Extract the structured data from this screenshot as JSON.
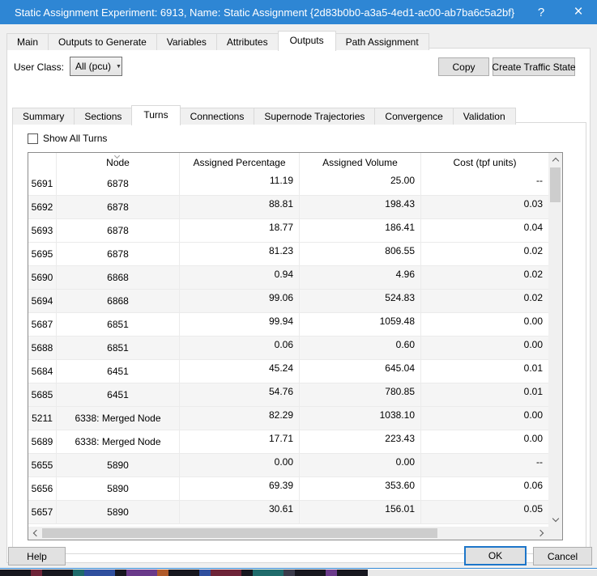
{
  "titlebar": {
    "title": "Static Assignment Experiment: 6913, Name: Static Assignment  {2d83b0b0-a3a5-4ed1-ac00-ab7ba6c5a2bf}",
    "help_glyph": "?",
    "close_glyph": "×"
  },
  "tabs": {
    "items": [
      "Main",
      "Outputs to Generate",
      "Variables",
      "Attributes",
      "Outputs",
      "Path Assignment"
    ],
    "active_index": 4
  },
  "toolbar": {
    "user_class_label": "User Class:",
    "user_class_value": "All (pcu)",
    "dropdown_arrow": "▼",
    "copy_label": "Copy",
    "create_traffic_state_label": "Create Traffic State"
  },
  "subtabs": {
    "items": [
      "Summary",
      "Sections",
      "Turns",
      "Connections",
      "Supernode Trajectories",
      "Convergence",
      "Validation"
    ],
    "active_index": 2
  },
  "filters": {
    "show_all_turns_label": "Show All Turns",
    "checked": false
  },
  "table": {
    "columns": [
      "",
      "Node",
      "Assigned Percentage",
      "Assigned Volume",
      "Cost (tpf units)"
    ],
    "sorted_column": "Node",
    "rows": [
      {
        "id": "5691",
        "node": "6878",
        "assigned_percentage": "11.19",
        "assigned_volume": "25.00",
        "cost": "--",
        "shade": "white"
      },
      {
        "id": "5692",
        "node": "6878",
        "assigned_percentage": "88.81",
        "assigned_volume": "198.43",
        "cost": "0.03",
        "shade": "gray"
      },
      {
        "id": "5693",
        "node": "6878",
        "assigned_percentage": "18.77",
        "assigned_volume": "186.41",
        "cost": "0.04",
        "shade": "white"
      },
      {
        "id": "5695",
        "node": "6878",
        "assigned_percentage": "81.23",
        "assigned_volume": "806.55",
        "cost": "0.02",
        "shade": "white"
      },
      {
        "id": "5690",
        "node": "6868",
        "assigned_percentage": "0.94",
        "assigned_volume": "4.96",
        "cost": "0.02",
        "shade": "gray"
      },
      {
        "id": "5694",
        "node": "6868",
        "assigned_percentage": "99.06",
        "assigned_volume": "524.83",
        "cost": "0.02",
        "shade": "gray"
      },
      {
        "id": "5687",
        "node": "6851",
        "assigned_percentage": "99.94",
        "assigned_volume": "1059.48",
        "cost": "0.00",
        "shade": "white"
      },
      {
        "id": "5688",
        "node": "6851",
        "assigned_percentage": "0.06",
        "assigned_volume": "0.60",
        "cost": "0.00",
        "shade": "gray"
      },
      {
        "id": "5684",
        "node": "6451",
        "assigned_percentage": "45.24",
        "assigned_volume": "645.04",
        "cost": "0.01",
        "shade": "white"
      },
      {
        "id": "5685",
        "node": "6451",
        "assigned_percentage": "54.76",
        "assigned_volume": "780.85",
        "cost": "0.01",
        "shade": "gray"
      },
      {
        "id": "5211",
        "node": "6338: Merged Node",
        "assigned_percentage": "82.29",
        "assigned_volume": "1038.10",
        "cost": "0.00",
        "shade": "gray"
      },
      {
        "id": "5689",
        "node": "6338: Merged Node",
        "assigned_percentage": "17.71",
        "assigned_volume": "223.43",
        "cost": "0.00",
        "shade": "white"
      },
      {
        "id": "5655",
        "node": "5890",
        "assigned_percentage": "0.00",
        "assigned_volume": "0.00",
        "cost": "--",
        "shade": "gray"
      },
      {
        "id": "5656",
        "node": "5890",
        "assigned_percentage": "69.39",
        "assigned_volume": "353.60",
        "cost": "0.06",
        "shade": "white"
      },
      {
        "id": "5657",
        "node": "5890",
        "assigned_percentage": "30.61",
        "assigned_volume": "156.01",
        "cost": "0.05",
        "shade": "gray"
      }
    ]
  },
  "footer": {
    "help_label": "Help",
    "ok_label": "OK",
    "cancel_label": "Cancel"
  },
  "colors": {
    "titlebar_bg": "#2e86d4",
    "focus_border": "#1d76c9",
    "row_alt_bg": "#f5f5f5",
    "button_bg": "#e1e1e1",
    "button_border": "#adadad",
    "dialog_bg": "#f0f0f0",
    "table_border": "#8c8c8c"
  }
}
